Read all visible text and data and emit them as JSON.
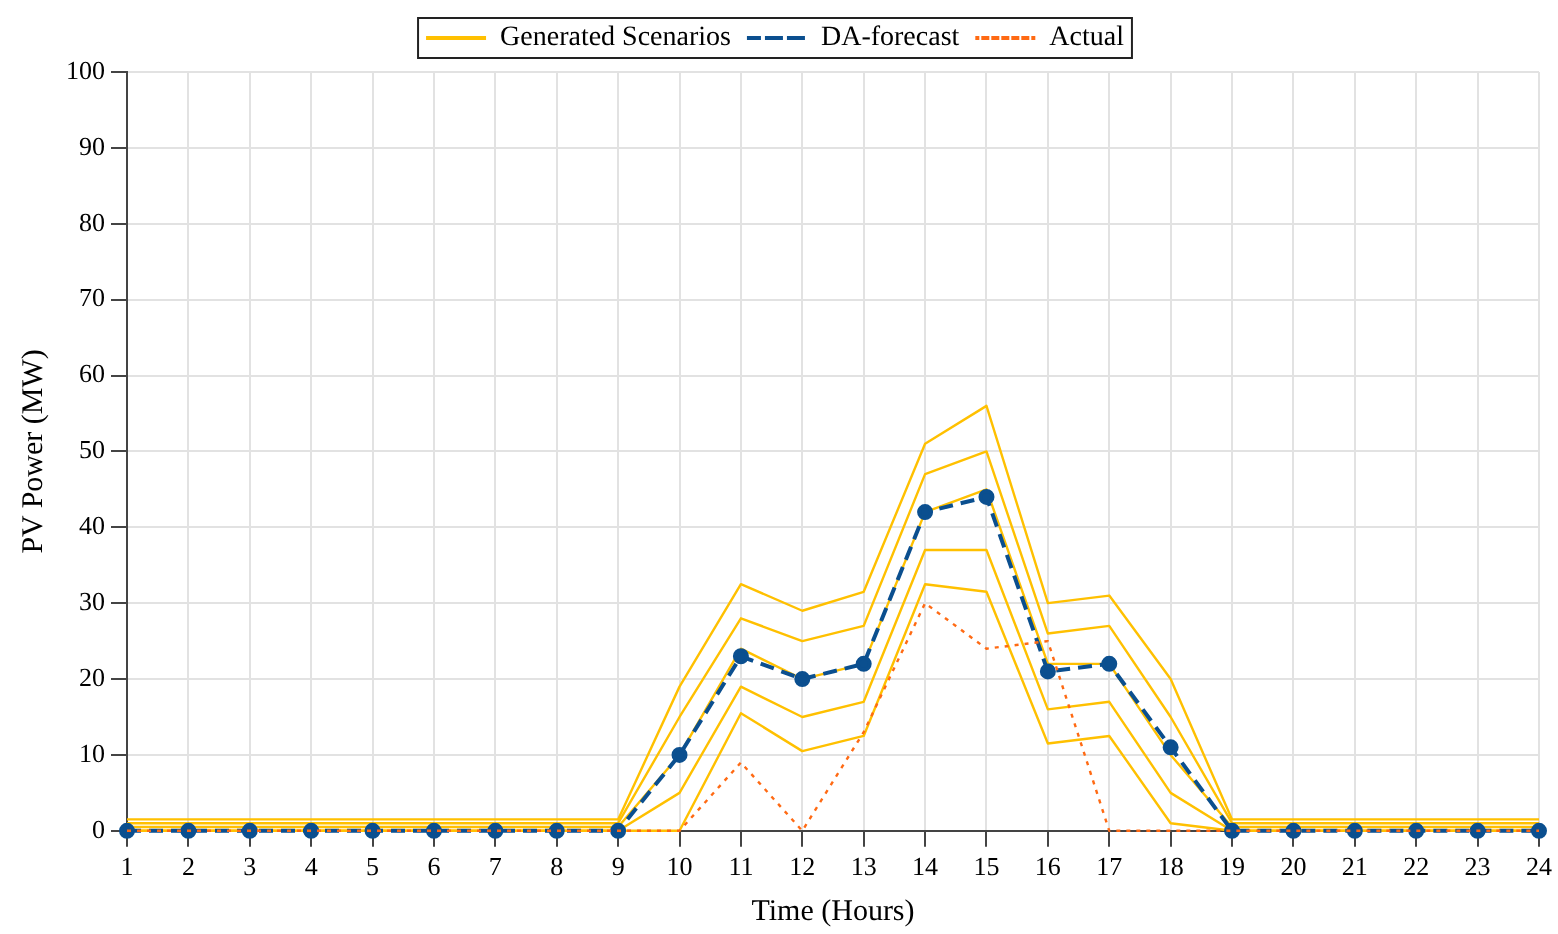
{
  "chart_data": {
    "type": "line",
    "xlabel": "Time (Hours)",
    "ylabel": "PV Power (MW)",
    "x": [
      1,
      2,
      3,
      4,
      5,
      6,
      7,
      8,
      9,
      10,
      11,
      12,
      13,
      14,
      15,
      16,
      17,
      18,
      19,
      20,
      21,
      22,
      23,
      24
    ],
    "xlim": [
      1,
      24
    ],
    "xticks": [
      1,
      2,
      3,
      4,
      5,
      6,
      7,
      8,
      9,
      10,
      11,
      12,
      13,
      14,
      15,
      16,
      17,
      18,
      19,
      20,
      21,
      22,
      23,
      24
    ],
    "ylim": [
      0,
      100
    ],
    "yticks": [
      0,
      10,
      20,
      30,
      40,
      50,
      60,
      70,
      80,
      90,
      100
    ],
    "grid": true,
    "legend": "top",
    "series": [
      {
        "name": "Generated Scenarios",
        "color": "#ffc000",
        "marker": "none",
        "line_style": "solid",
        "values": [
          1.5,
          1.5,
          1.5,
          1.5,
          1.5,
          1.5,
          1.5,
          1.5,
          1.5,
          19,
          32.5,
          29,
          31.5,
          51,
          56,
          30,
          31,
          20,
          1.5,
          1.5,
          1.5,
          1.5,
          1.5,
          1.5
        ]
      },
      {
        "color": "#ffc000",
        "marker": "none",
        "line_style": "solid",
        "values": [
          1,
          1,
          1,
          1,
          1,
          1,
          1,
          1,
          1,
          15,
          28,
          25,
          27,
          47,
          50,
          26,
          27,
          15,
          1,
          1,
          1,
          1,
          1,
          1
        ]
      },
      {
        "color": "#ffc000",
        "marker": "none",
        "line_style": "solid",
        "values": [
          0.5,
          0.5,
          0.5,
          0.5,
          0.5,
          0.5,
          0.5,
          0.5,
          0.5,
          10,
          24,
          20,
          22,
          42,
          45,
          22,
          22,
          10,
          0.5,
          0.5,
          0.5,
          0.5,
          0.5,
          0.5
        ]
      },
      {
        "color": "#ffc000",
        "marker": "none",
        "line_style": "solid",
        "values": [
          0,
          0,
          0,
          0,
          0,
          0,
          0,
          0,
          0,
          5,
          19,
          15,
          17,
          37,
          37,
          16,
          17,
          5,
          0,
          0,
          0,
          0,
          0,
          0
        ]
      },
      {
        "color": "#ffc000",
        "marker": "none",
        "line_style": "solid",
        "values": [
          0,
          0,
          0,
          0,
          0,
          0,
          0,
          0,
          0,
          0,
          15.5,
          10.5,
          12.5,
          32.5,
          31.5,
          11.5,
          12.5,
          1,
          0,
          0,
          0,
          0,
          0,
          0
        ]
      },
      {
        "name": "DA-forecast",
        "color": "#0b4f8f",
        "marker": "circle",
        "line_style": "dashed",
        "values": [
          0,
          0,
          0,
          0,
          0,
          0,
          0,
          0,
          0,
          10,
          23,
          20,
          22,
          42,
          44,
          21,
          22,
          11,
          0,
          0,
          0,
          0,
          0,
          0
        ]
      },
      {
        "name": "Actual",
        "color": "#ff6a13",
        "marker": "none",
        "line_style": "dotted",
        "values": [
          0,
          0,
          0,
          0,
          0,
          0,
          0,
          0,
          0,
          0,
          9,
          0,
          13,
          30,
          24,
          25,
          0,
          0,
          0,
          0,
          0,
          0,
          0,
          0
        ]
      }
    ]
  }
}
